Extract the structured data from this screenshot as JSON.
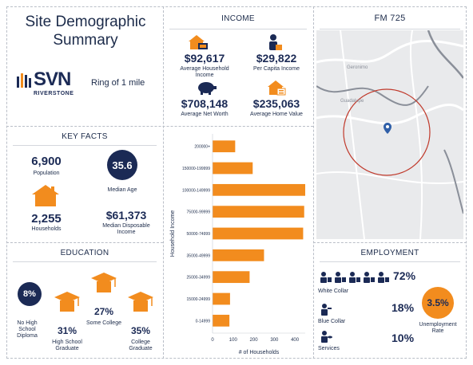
{
  "title": "Site Demographic Summary",
  "brand": {
    "logo_main": "SVN",
    "logo_sub": "RIVERSTONE"
  },
  "ring_label": "Ring of 1 mile",
  "income": {
    "header": "INCOME",
    "avg_household_income": {
      "value": "$92,617",
      "label": "Average Household Income"
    },
    "per_capita_income": {
      "value": "$29,822",
      "label": "Per Capita Income"
    },
    "avg_net_worth": {
      "value": "$708,148",
      "label": "Average Net Worth"
    },
    "avg_home_value": {
      "value": "$235,063",
      "label": "Average Home Value"
    }
  },
  "map": {
    "header": "FM 725",
    "label_1": "Geronimo",
    "label_2": "Guadalupe"
  },
  "key_facts": {
    "header": "KEY FACTS",
    "population": {
      "value": "6,900",
      "label": "Population"
    },
    "median_age": {
      "value": "35.6",
      "label": "Median Age"
    },
    "households": {
      "value": "2,255",
      "label": "Households"
    },
    "median_disposable_income": {
      "value": "$61,373",
      "label": "Median Disposable Income"
    }
  },
  "education": {
    "header": "EDUCATION",
    "no_hs": {
      "value": "8%",
      "label": "No High School Diploma"
    },
    "hs_grad": {
      "value": "31%",
      "label": "High School Graduate"
    },
    "some_college": {
      "value": "27%",
      "label": "Some College"
    },
    "college_grad": {
      "value": "35%",
      "label": "College Graduate"
    }
  },
  "employment": {
    "header": "EMPLOYMENT",
    "white_collar": {
      "value": "72%",
      "label": "White Collar"
    },
    "blue_collar": {
      "value": "18%",
      "label": "Blue Collar"
    },
    "services": {
      "value": "10%",
      "label": "Services"
    },
    "unemployment": {
      "value": "3.5%",
      "label": "Unemployment Rate"
    }
  },
  "colors": {
    "navy": "#1b2a55",
    "orange": "#f28c1e",
    "map_ring": "#c0392b"
  },
  "chart_data": {
    "type": "bar",
    "orientation": "horizontal",
    "categories": [
      "200000+",
      "150000-199999",
      "100000-149999",
      "75000-99999",
      "50000-74999",
      "35000-49999",
      "25000-34999",
      "15000-24999",
      "0-14999"
    ],
    "values": [
      110,
      195,
      450,
      445,
      440,
      250,
      180,
      85,
      82
    ],
    "xlabel": "# of Households",
    "ylabel": "Household Income",
    "xlim": [
      0,
      450
    ],
    "xticks": [
      "0",
      "100",
      "200",
      "300",
      "400"
    ],
    "grid": false
  }
}
